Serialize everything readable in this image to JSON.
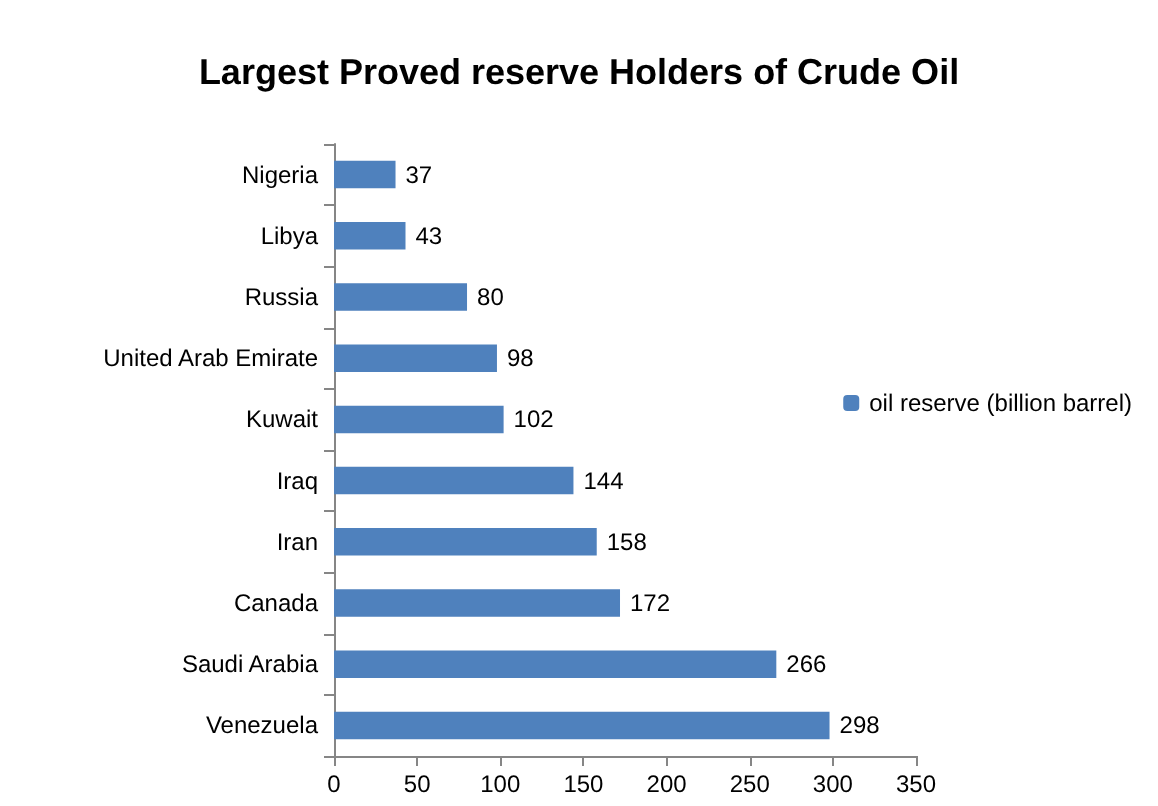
{
  "chart_data": {
    "type": "bar",
    "orientation": "horizontal",
    "title": "Largest Proved reserve Holders of Crude Oil",
    "categories": [
      "Nigeria",
      "Libya",
      "Russia",
      "United Arab Emirate",
      "Kuwait",
      "Iraq",
      "Iran",
      "Canada",
      "Saudi Arabia",
      "Venezuela"
    ],
    "series": [
      {
        "name": "oil reserve (billion barrel)",
        "color": "#4f81bd",
        "values": [
          37,
          43,
          80,
          98,
          102,
          144,
          158,
          172,
          266,
          298
        ]
      }
    ],
    "xlim": [
      0,
      350
    ],
    "xticks": [
      0,
      50,
      100,
      150,
      200,
      250,
      300,
      350
    ],
    "data_labels": true,
    "grid": false,
    "legend": "right"
  }
}
